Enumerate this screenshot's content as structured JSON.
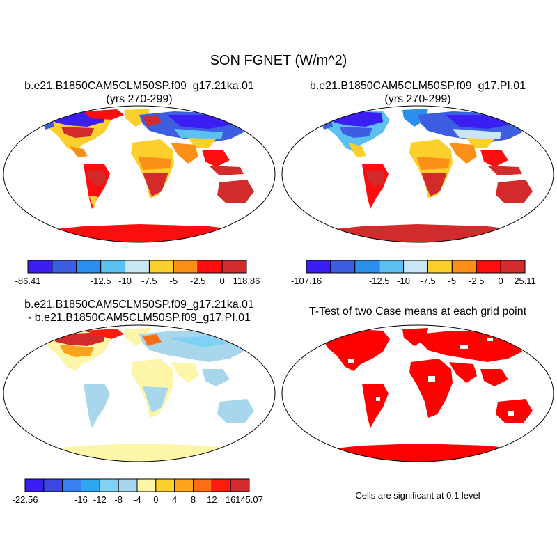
{
  "title": "SON FGNET (W/m^2)",
  "panels": [
    {
      "id": "case1",
      "title_lines": [
        "b.e21.B1850CAM5CLM50SP.f09_g17.21ka.01",
        "(yrs 270-299)"
      ],
      "colorbar": {
        "colors": [
          "#3b1ff2",
          "#3d5ee0",
          "#2b8fef",
          "#5cc0f0",
          "#c9e6f5",
          "#fcd02c",
          "#fb9018",
          "#fd0d0d",
          "#d32b2b"
        ],
        "labels": [
          "-86.41",
          "-12.5",
          "-10",
          "-7.5",
          "-5",
          "-2.5",
          "0",
          "118.86"
        ]
      }
    },
    {
      "id": "case2",
      "title_lines": [
        "b.e21.B1850CAM5CLM50SP.f09_g17.PI.01",
        "(yrs 270-299)"
      ],
      "colorbar": {
        "colors": [
          "#3b1ff2",
          "#3d5ee0",
          "#2b8fef",
          "#5cc0f0",
          "#c9e6f5",
          "#fcd02c",
          "#fb9018",
          "#fd0d0d",
          "#d32b2b"
        ],
        "labels": [
          "-107.16",
          "-12.5",
          "-10",
          "-7.5",
          "-5",
          "-2.5",
          "0",
          "25.11"
        ]
      }
    },
    {
      "id": "diff",
      "title_lines": [
        "b.e21.B1850CAM5CLM50SP.f09_g17.21ka.01",
        "- b.e21.B1850CAM5CLM50SP.f09_g17.PI.01"
      ],
      "colorbar": {
        "colors": [
          "#3b1ff2",
          "#3d48e0",
          "#3a7ff0",
          "#2ea6f0",
          "#7fd2f5",
          "#a8d6ec",
          "#fdf6a8",
          "#fcd02c",
          "#fca21c",
          "#fb6e14",
          "#fd1d0d",
          "#d32b2b"
        ],
        "labels": [
          "-22.56",
          "-16",
          "-12",
          "-8",
          "-4",
          "0",
          "4",
          "8",
          "12",
          "16",
          "145.07"
        ]
      }
    },
    {
      "id": "ttest",
      "title_lines": [
        "T-Test of two Case means at each grid point"
      ],
      "note": "Cells are significant at 0.1 level"
    }
  ]
}
